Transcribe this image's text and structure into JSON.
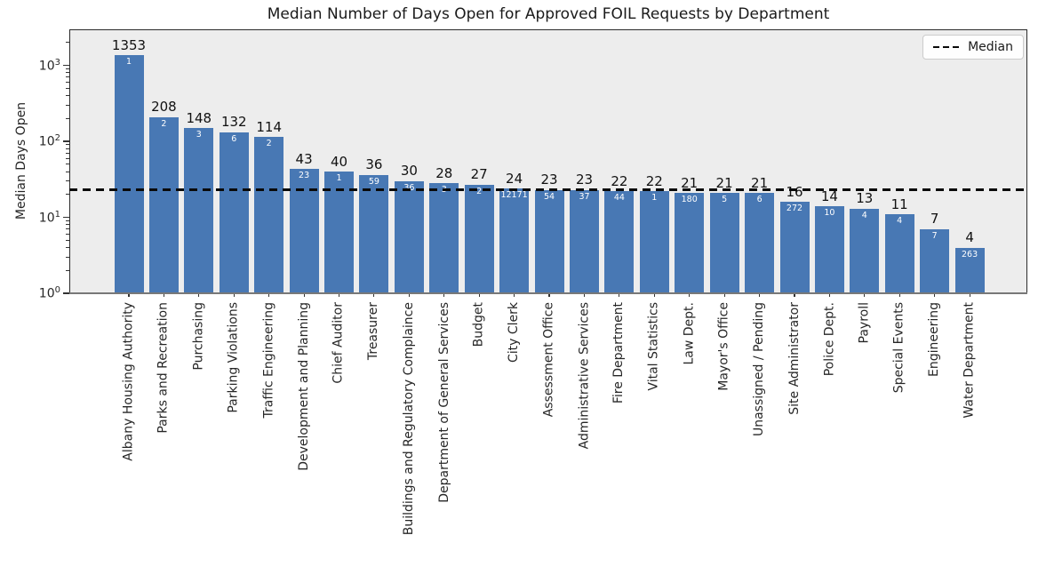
{
  "title": "Median Number of Days Open for Approved FOIL Requests by Department",
  "ylabel": "Median Days Open",
  "legend": {
    "label": "Median"
  },
  "chart_data": {
    "type": "bar",
    "title": "Median Number of Days Open for Approved FOIL Requests by Department",
    "xlabel": "",
    "ylabel": "Median Days Open",
    "yscale": "log",
    "ylim": [
      1,
      3000
    ],
    "yticks": [
      1,
      10,
      100,
      1000
    ],
    "grid": false,
    "legend_entries": [
      "Median"
    ],
    "legend_position": "upper right",
    "categories": [
      "Albany Housing Authority",
      "Parks and Recreation",
      "Purchasing",
      "Parking Violations",
      "Traffic Engineering",
      "Development and Planning",
      "Chief Auditor",
      "Treasurer",
      "Buildings and Regulatory Complaince",
      "Department of General Services",
      "Budget",
      "City Clerk",
      "Assessment Office",
      "Administrative Services",
      "Fire Department",
      "Vital Statistics",
      "Law Dept.",
      "Mayor's Office",
      "Unassigned / Pending",
      "Site Administrator",
      "Police Dept.",
      "Payroll",
      "Special Events",
      "Engineering",
      "Water Department"
    ],
    "values": [
      1353,
      208,
      148,
      132,
      114,
      43,
      40,
      36,
      30,
      28,
      27,
      24,
      23,
      23,
      22,
      22,
      21,
      21,
      21,
      16,
      14,
      13,
      11,
      7,
      4
    ],
    "inner_counts": [
      1,
      2,
      3,
      6,
      2,
      23,
      1,
      59,
      36,
      3,
      2,
      12171,
      54,
      37,
      44,
      1,
      180,
      5,
      6,
      272,
      10,
      4,
      4,
      7,
      263
    ],
    "median_line_value": 23,
    "colors": {
      "bar": "#4878b4",
      "plot_background": "#ededed",
      "median_line": "#0a0a0a"
    }
  }
}
